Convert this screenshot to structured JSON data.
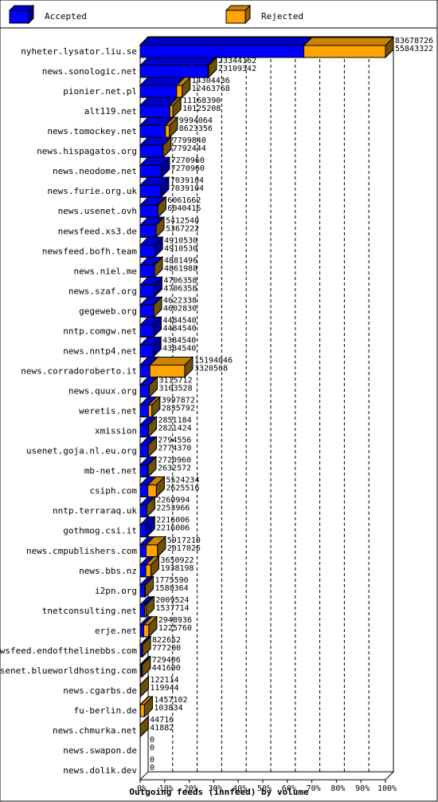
{
  "chart_data": {
    "type": "bar",
    "orientation": "horizontal",
    "stacked": true,
    "title": "Outgoing feeds (innfeed) by volume",
    "xlim_percent": [
      0,
      100
    ],
    "ticks": [
      "0%",
      "10%",
      "20%",
      "30%",
      "40%",
      "50%",
      "60%",
      "70%",
      "80%",
      "90%",
      "100%"
    ],
    "legend_position": "top",
    "series": [
      {
        "name": "Accepted",
        "color": "#0000ff"
      },
      {
        "name": "Rejected",
        "color": "#ffa500"
      }
    ],
    "categories": [
      "nyheter.lysator.liu.se",
      "news.sonologic.net",
      "pionier.net.pl",
      "alt119.net",
      "news.tomockey.net",
      "news.hispagatos.org",
      "news.neodome.net",
      "news.furie.org.uk",
      "news.usenet.ovh",
      "newsfeed.xs3.de",
      "newsfeed.bofh.team",
      "news.niel.me",
      "news.szaf.org",
      "gegeweb.org",
      "nntp.comgw.net",
      "news.nntp4.net",
      "news.corradoroberto.it",
      "news.quux.org",
      "weretis.net",
      "xmission",
      "usenet.goja.nl.eu.org",
      "mb-net.net",
      "csiph.com",
      "nntp.terraraq.uk",
      "gothmog.csi.it",
      "news.cmpublishers.com",
      "news.bbs.nz",
      "i2pn.org",
      "tnetconsulting.net",
      "erje.net",
      "newsfeed.endofthelinebbs.com",
      "usenet.blueworldhosting.com",
      "news.cgarbs.de",
      "fu-berlin.de",
      "news.chmurka.net",
      "news.swapon.de",
      "news.dolik.dev"
    ],
    "total": [
      83678726,
      23344162,
      14304436,
      11168390,
      9994064,
      7799840,
      7270960,
      7039104,
      6061662,
      5412540,
      4910530,
      4881496,
      4706358,
      4622338,
      4484540,
      4384540,
      15194046,
      3115712,
      3997872,
      2851184,
      2794556,
      2720960,
      5524234,
      2260994,
      2216006,
      5917210,
      3650922,
      1775590,
      2009524,
      2948936,
      822652,
      729406,
      122114,
      1457102,
      44716,
      0,
      0
    ],
    "accepted": [
      55843322,
      23109342,
      12463768,
      10125208,
      8623356,
      7792444,
      7270960,
      7039104,
      6040416,
      5367222,
      4910530,
      4861988,
      4706358,
      4602830,
      4484540,
      4384540,
      3320568,
      3103528,
      2835792,
      2821424,
      2774370,
      2632572,
      2625516,
      2253966,
      2216006,
      2017026,
      1938198,
      1580364,
      1537714,
      1225760,
      777200,
      441600,
      119944,
      103834,
      41882,
      0,
      0
    ]
  }
}
